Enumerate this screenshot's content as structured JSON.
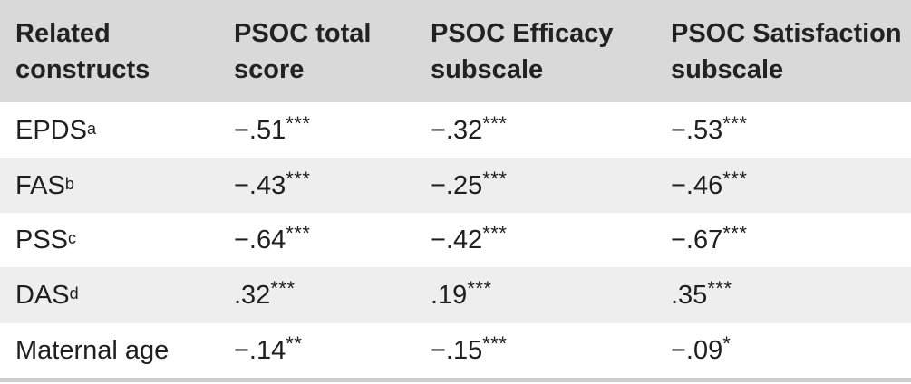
{
  "header": {
    "col0": [
      "Related",
      "constructs"
    ],
    "col1": [
      "PSOC total",
      "score"
    ],
    "col2": [
      "PSOC Efficacy",
      "subscale"
    ],
    "col3": [
      "PSOC Satisfaction",
      "subscale"
    ]
  },
  "rows": [
    {
      "construct": "EPDS",
      "note": "a",
      "total": {
        "value": "−.51",
        "sig": "***"
      },
      "efficacy": {
        "value": "−.32",
        "sig": "***"
      },
      "satisfaction": {
        "value": "−.53",
        "sig": "***"
      }
    },
    {
      "construct": "FAS",
      "note": "b",
      "total": {
        "value": "−.43",
        "sig": "***"
      },
      "efficacy": {
        "value": "−.25",
        "sig": "***"
      },
      "satisfaction": {
        "value": "−.46",
        "sig": "***"
      }
    },
    {
      "construct": "PSS",
      "note": "c",
      "total": {
        "value": "−.64",
        "sig": "***"
      },
      "efficacy": {
        "value": "−.42",
        "sig": "***"
      },
      "satisfaction": {
        "value": "−.67",
        "sig": "***"
      }
    },
    {
      "construct": "DAS",
      "note": "d",
      "total": {
        "value": ".32",
        "sig": "***"
      },
      "efficacy": {
        "value": ".19",
        "sig": "***"
      },
      "satisfaction": {
        "value": ".35",
        "sig": "***"
      }
    },
    {
      "construct": "Maternal age",
      "note": "",
      "total": {
        "value": "−.14",
        "sig": "**"
      },
      "efficacy": {
        "value": "−.15",
        "sig": "***"
      },
      "satisfaction": {
        "value": "−.09",
        "sig": "*"
      }
    }
  ],
  "colors": {
    "header_bg": "#d9d9d9",
    "stripe_bg": "#eeeeee",
    "text": "#1f1f1f",
    "rule": "#cfcfcf"
  }
}
